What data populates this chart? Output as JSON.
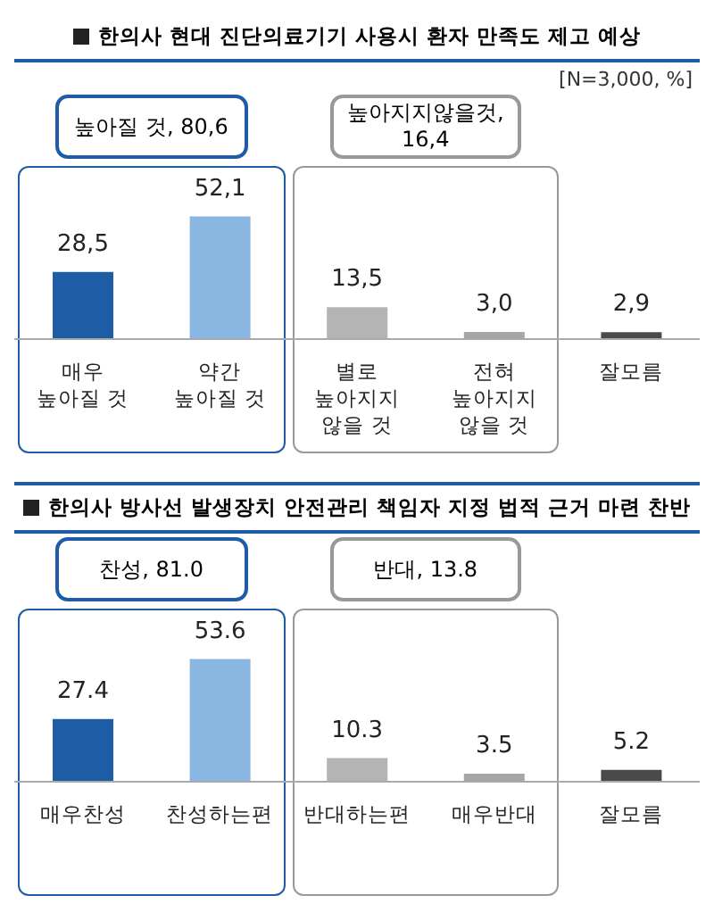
{
  "chart_data": [
    {
      "type": "bar",
      "title": "한의사 현대 진단의료기기 사용시 환자 만족도 제고 예상",
      "subtitle": "[N=3,000, %]",
      "categories": [
        "매우 높아질 것",
        "약간 높아질 것",
        "별로 높아지지 않을 것",
        "전혀 높아지지 않을 것",
        "잘모름"
      ],
      "values": [
        28.5,
        52.1,
        13.5,
        3.0,
        2.9
      ],
      "value_labels": [
        "28,5",
        "52,1",
        "13,5",
        "3,0",
        "2,9"
      ],
      "colors": [
        "#1f5ca6",
        "#8ab6e2",
        "#b4b4b4",
        "#a6a6a6",
        "#4a4a4a"
      ],
      "annotations": [
        "높아질 것, 80,6",
        "높아지지않을것, 16,4"
      ]
    },
    {
      "type": "bar",
      "title": "한의사 방사선 발생장치 안전관리 책임자 지정 법적 근거 마련 찬반",
      "categories": [
        "매우찬성",
        "찬성하는편",
        "반대하는편",
        "매우반대",
        "잘모름"
      ],
      "values": [
        27.4,
        53.6,
        10.3,
        3.5,
        5.2
      ],
      "data_labels": true,
      "colors": [
        "#1f5ca6",
        "#8ab6e2",
        "#b4b4b4",
        "#a6a6a6",
        "#4a4a4a"
      ],
      "annotations": [
        "찬성, 81.0",
        "반대, 13.8"
      ]
    }
  ]
}
